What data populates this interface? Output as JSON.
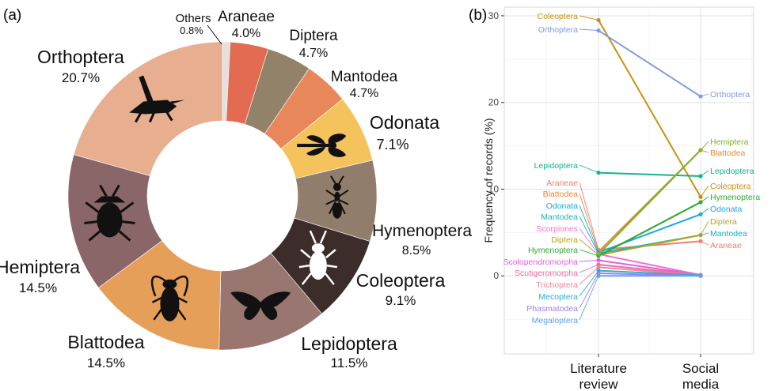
{
  "panel_a": {
    "label": "(a)"
  },
  "panel_b": {
    "label": "(b)"
  },
  "chart_data": [
    {
      "type": "pie",
      "variant": "donut",
      "slices": [
        {
          "label": "Others",
          "pct_text": "0.8%",
          "value": 0.8,
          "color": "#e4e0dc",
          "icon": ""
        },
        {
          "label": "Araneae",
          "pct_text": "4.0%",
          "value": 4.0,
          "color": "#e36b52",
          "icon": ""
        },
        {
          "label": "Diptera",
          "pct_text": "4.7%",
          "value": 4.7,
          "color": "#93826a",
          "icon": ""
        },
        {
          "label": "Mantodea",
          "pct_text": "4.7%",
          "value": 4.7,
          "color": "#e7875a",
          "icon": ""
        },
        {
          "label": "Odonata",
          "pct_text": "7.1%",
          "value": 7.1,
          "color": "#f5c35c",
          "icon": "dragonfly-icon"
        },
        {
          "label": "Hymenoptera",
          "pct_text": "8.5%",
          "value": 8.5,
          "color": "#917d6c",
          "icon": "ant-icon"
        },
        {
          "label": "Coleoptera",
          "pct_text": "9.1%",
          "value": 9.1,
          "color": "#3c2c2a",
          "icon": "beetle-icon"
        },
        {
          "label": "Lepidoptera",
          "pct_text": "11.5%",
          "value": 11.5,
          "color": "#9a7671",
          "icon": "butterfly-icon"
        },
        {
          "label": "Blattodea",
          "pct_text": "14.5%",
          "value": 14.5,
          "color": "#e59f59",
          "icon": "cockroach-icon"
        },
        {
          "label": "Hemiptera",
          "pct_text": "14.5%",
          "value": 14.5,
          "color": "#8b6668",
          "icon": "bug-icon"
        },
        {
          "label": "Orthoptera",
          "pct_text": "20.7%",
          "value": 20.7,
          "color": "#e7ae90",
          "icon": "grasshopper-icon"
        }
      ]
    },
    {
      "type": "line",
      "ylabel": "Frequency of records (%)",
      "xlabel": "",
      "categories": [
        "Literature review",
        "Social media"
      ],
      "category_lines": [
        [
          "Literature",
          "review"
        ],
        [
          "Social",
          "media"
        ]
      ],
      "yticks": [
        0,
        10,
        20,
        30
      ],
      "ylim": [
        -9,
        31
      ],
      "grid": true,
      "series": [
        {
          "name": "Coleoptera",
          "color": "#c7930f",
          "values": [
            29.5,
            9.1
          ]
        },
        {
          "name": "Orthoptera",
          "color": "#7f9be4",
          "values": [
            28.3,
            20.7
          ]
        },
        {
          "name": "Lepidoptera",
          "color": "#12b58f",
          "values": [
            11.9,
            11.5
          ]
        },
        {
          "name": "Araneae",
          "color": "#ee7f6d",
          "values": [
            3.0,
            4.0
          ]
        },
        {
          "name": "Blattodea",
          "color": "#e68a3a",
          "values": [
            2.8,
            14.5
          ]
        },
        {
          "name": "Odonata",
          "color": "#1aa7ea",
          "values": [
            2.7,
            7.1
          ]
        },
        {
          "name": "Mantodea",
          "color": "#19b4c2",
          "values": [
            2.6,
            4.7
          ]
        },
        {
          "name": "Scorpiones",
          "color": "#ee74d0",
          "values": [
            2.5,
            0.1
          ]
        },
        {
          "name": "Diptera",
          "color": "#b5a621",
          "values": [
            2.4,
            4.7
          ]
        },
        {
          "name": "Hymenoptera",
          "color": "#2eaa2e",
          "values": [
            2.3,
            8.5
          ]
        },
        {
          "name": "Hemiptera",
          "color": "#7ab62a",
          "values": [
            2.5,
            14.5
          ]
        },
        {
          "name": "Scolopendromorpha",
          "color": "#de5fde",
          "values": [
            1.8,
            0.1
          ]
        },
        {
          "name": "Scutigeromorpha",
          "color": "#f06aa4",
          "values": [
            1.3,
            0.1
          ]
        },
        {
          "name": "Trichoptera",
          "color": "#f08596",
          "values": [
            1.0,
            0.05
          ]
        },
        {
          "name": "Mecoptera",
          "color": "#26b0d6",
          "values": [
            0.6,
            0.05
          ]
        },
        {
          "name": "Phasmatodea",
          "color": "#a57de6",
          "values": [
            0.3,
            0.0
          ]
        },
        {
          "name": "Megaloptera",
          "color": "#5aa6ee",
          "values": [
            0.0,
            0.0
          ]
        }
      ],
      "left_labels": [
        "Coleoptera",
        "Orthoptera",
        "Lepidoptera",
        "Araneae",
        "Blattodea",
        "Odonata",
        "Mantodea",
        "Scorpiones",
        "Diptera",
        "Hymenoptera",
        "Scolopendromorpha",
        "Scutigeromorpha",
        "Trichoptera",
        "Mecoptera",
        "Phasmatodea",
        "Megaloptera"
      ],
      "right_labels": [
        "Orthoptera",
        "Hemiptera",
        "Blattodea",
        "Lepidoptera",
        "Coleoptera",
        "Hymenoptera",
        "Odonata",
        "Diptera",
        "Mantodea",
        "Araneae"
      ]
    }
  ]
}
